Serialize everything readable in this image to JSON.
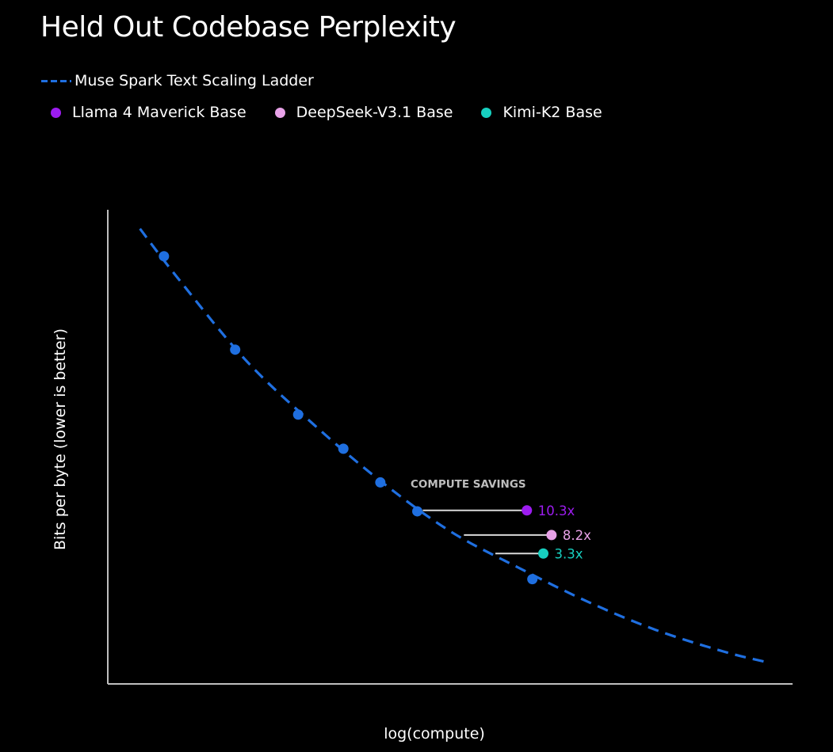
{
  "chart_data": {
    "type": "line",
    "title": "Held Out Codebase Perplexity",
    "xlabel": "log(compute)",
    "ylabel": "Bits per byte (lower is better)",
    "x_ticks_shown": false,
    "y_ticks_shown": false,
    "grid": false,
    "legend_position": "top-left",
    "series": [
      {
        "name": "Muse Spark Text Scaling Ladder",
        "style": "dashed",
        "color": "#1f6fe0",
        "points": [
          [
            0.082,
            0.902
          ],
          [
            0.186,
            0.705
          ],
          [
            0.278,
            0.568
          ],
          [
            0.344,
            0.496
          ],
          [
            0.398,
            0.425
          ],
          [
            0.452,
            0.364
          ],
          [
            0.62,
            0.221
          ]
        ],
        "fit_curve": [
          [
            0.047,
            0.96
          ],
          [
            0.1,
            0.86
          ],
          [
            0.2,
            0.685
          ],
          [
            0.3,
            0.548
          ],
          [
            0.4,
            0.426
          ],
          [
            0.5,
            0.322
          ],
          [
            0.6,
            0.245
          ],
          [
            0.7,
            0.174
          ],
          [
            0.8,
            0.114
          ],
          [
            0.9,
            0.068
          ],
          [
            0.965,
            0.045
          ]
        ]
      },
      {
        "name": "Llama 4 Maverick Base",
        "type": "scatter",
        "color": "#9d1cf0",
        "points": [
          [
            0.612,
            0.366
          ]
        ]
      },
      {
        "name": "DeepSeek-V3.1 Base",
        "type": "scatter",
        "color": "#e8a2e8",
        "points": [
          [
            0.648,
            0.314
          ]
        ]
      },
      {
        "name": "Kimi-K2 Base",
        "type": "scatter",
        "color": "#17d0c0",
        "points": [
          [
            0.636,
            0.275
          ]
        ]
      }
    ],
    "annotation": {
      "header": "COMPUTE SAVINGS",
      "items": [
        {
          "label": "10.3x",
          "color": "#9d1cf0",
          "from": [
            0.46,
            0.366
          ],
          "to": [
            0.612,
            0.366
          ]
        },
        {
          "label": "8.2x",
          "color": "#e8a2e8",
          "from": [
            0.52,
            0.314
          ],
          "to": [
            0.648,
            0.314
          ]
        },
        {
          "label": "3.3x",
          "color": "#17d0c0",
          "from": [
            0.566,
            0.275
          ],
          "to": [
            0.636,
            0.275
          ]
        }
      ]
    },
    "legend": {
      "row1": [
        {
          "label": "Muse Spark Text Scaling Ladder",
          "marker": "dash",
          "color": "#1f6fe0"
        }
      ],
      "row2": [
        {
          "label": "Llama 4 Maverick Base",
          "marker": "dot",
          "color": "#9d1cf0"
        },
        {
          "label": "DeepSeek-V3.1 Base",
          "marker": "dot",
          "color": "#e8a2e8"
        },
        {
          "label": "Kimi-K2 Base",
          "marker": "dot",
          "color": "#17d0c0"
        }
      ]
    }
  }
}
